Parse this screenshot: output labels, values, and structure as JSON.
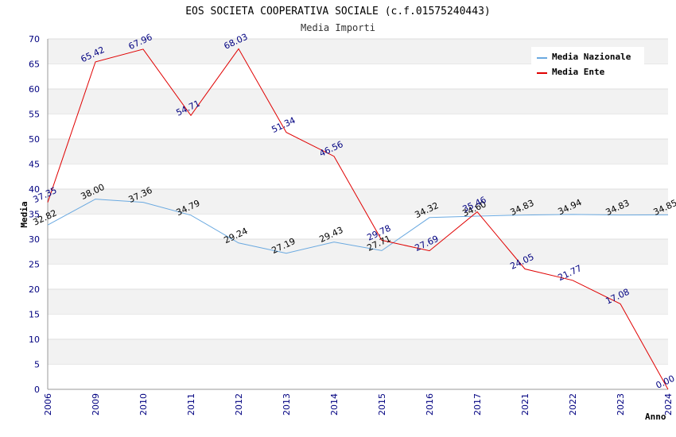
{
  "chart_data": {
    "type": "line",
    "title": "EOS SOCIETA COOPERATIVA SOCIALE (c.f.01575240443)",
    "subtitle": "Media Importi",
    "xlabel": "Anno",
    "ylabel": "Media",
    "ylim": [
      0,
      70
    ],
    "ytick_step": 5,
    "grid": "horizontal-bands",
    "legend_position": "top-right",
    "categories": [
      "2006",
      "2009",
      "2010",
      "2011",
      "2012",
      "2013",
      "2014",
      "2015",
      "2016",
      "2017",
      "2021",
      "2022",
      "2023",
      "2024"
    ],
    "series": [
      {
        "name": "Media Nazionale",
        "color": "#6aa9e0",
        "values": [
          32.82,
          38.0,
          37.36,
          34.79,
          29.24,
          27.19,
          29.43,
          27.71,
          34.32,
          34.6,
          34.83,
          34.94,
          34.83,
          34.85
        ],
        "labels": [
          "32.82",
          "38.00",
          "37.36",
          "34.79",
          "29.24",
          "27.19",
          "29.43",
          "27.71",
          "34.32",
          "34.60",
          "34.83",
          "34.94",
          "34.83",
          "34.85"
        ]
      },
      {
        "name": "Media Ente",
        "color": "#e00000",
        "values": [
          37.35,
          65.42,
          67.96,
          54.71,
          68.03,
          51.34,
          46.56,
          29.78,
          27.69,
          35.46,
          24.05,
          21.77,
          17.08,
          0.0
        ],
        "labels": [
          "37.35",
          "65.42",
          "67.96",
          "54.71",
          "68.03",
          "51.34",
          "46.56",
          "29.78",
          "27.69",
          "35.46",
          "24.05",
          "21.77",
          "17.08",
          "0.00"
        ]
      }
    ]
  }
}
